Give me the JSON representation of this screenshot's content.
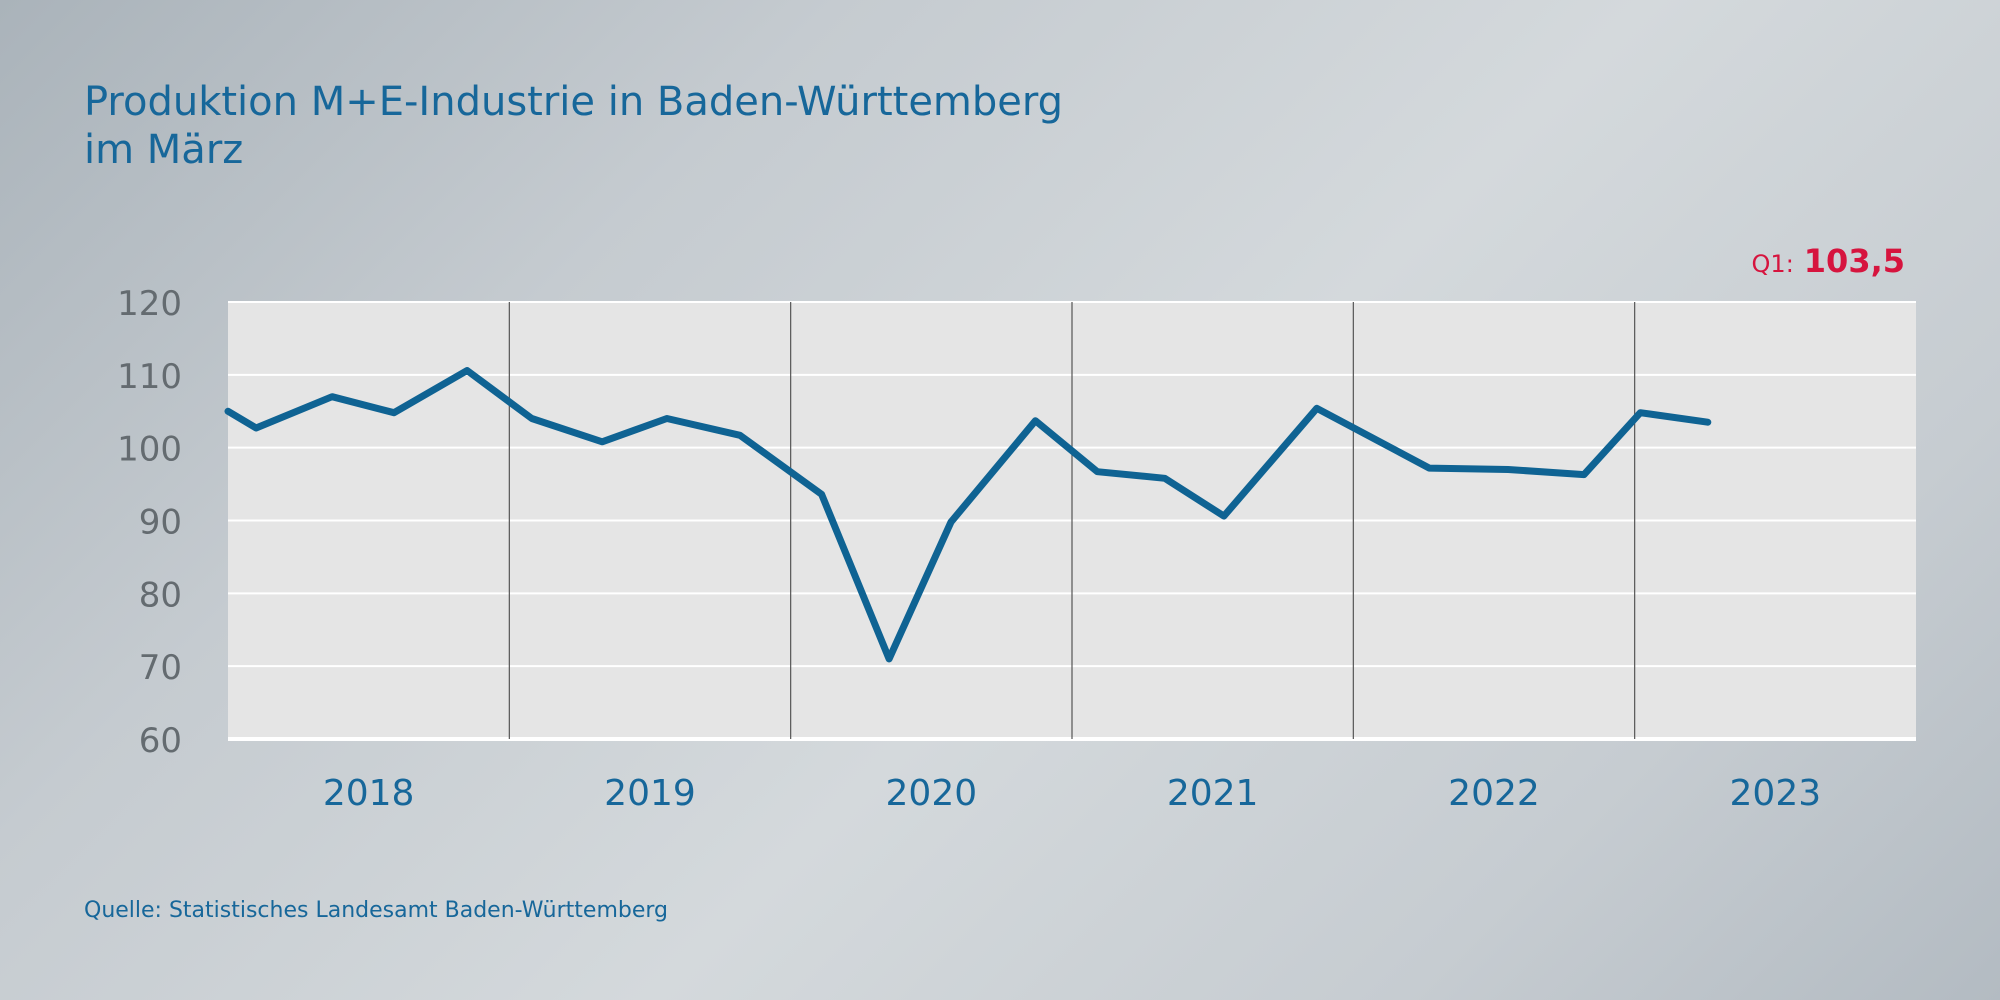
{
  "chart_data": {
    "type": "line",
    "title_lines": [
      "Produktion M+E-Industrie in Baden-Württemberg",
      "im März"
    ],
    "xlabel": "",
    "ylabel": "",
    "ylim": [
      60,
      120
    ],
    "yticks": [
      120,
      110,
      100,
      90,
      80,
      70,
      60
    ],
    "categories": [
      "2018",
      "2019",
      "2020",
      "2021",
      "2022",
      "2023"
    ],
    "grid": "horizontal lines, vertical year separators",
    "colors": {
      "line": "#0f6393",
      "plot_background": "#e5e5e5",
      "gridline": "#ffffff",
      "separator": "#555555",
      "highlight": "#d6143e"
    },
    "series": [
      {
        "values": [
          [
            0.0,
            105.0
          ],
          [
            0.1,
            102.7
          ],
          [
            0.37,
            107.0
          ],
          [
            0.59,
            104.8
          ],
          [
            0.85,
            110.6
          ],
          [
            1.08,
            104.0
          ],
          [
            1.33,
            100.8
          ],
          [
            1.56,
            104.0
          ],
          [
            1.82,
            101.7
          ],
          [
            2.11,
            93.6
          ],
          [
            2.35,
            71.0
          ],
          [
            2.57,
            89.8
          ],
          [
            2.87,
            103.7
          ],
          [
            3.09,
            96.7
          ],
          [
            3.33,
            95.8
          ],
          [
            3.54,
            90.6
          ],
          [
            3.87,
            105.4
          ],
          [
            4.27,
            97.2
          ],
          [
            4.55,
            97.0
          ],
          [
            4.82,
            96.3
          ],
          [
            5.02,
            104.8
          ],
          [
            5.26,
            103.5
          ]
        ]
      }
    ],
    "callout": {
      "label": "Q1:",
      "value": "103,5"
    }
  },
  "source": "Quelle: Statistisches Landesamt Baden-Württemberg"
}
